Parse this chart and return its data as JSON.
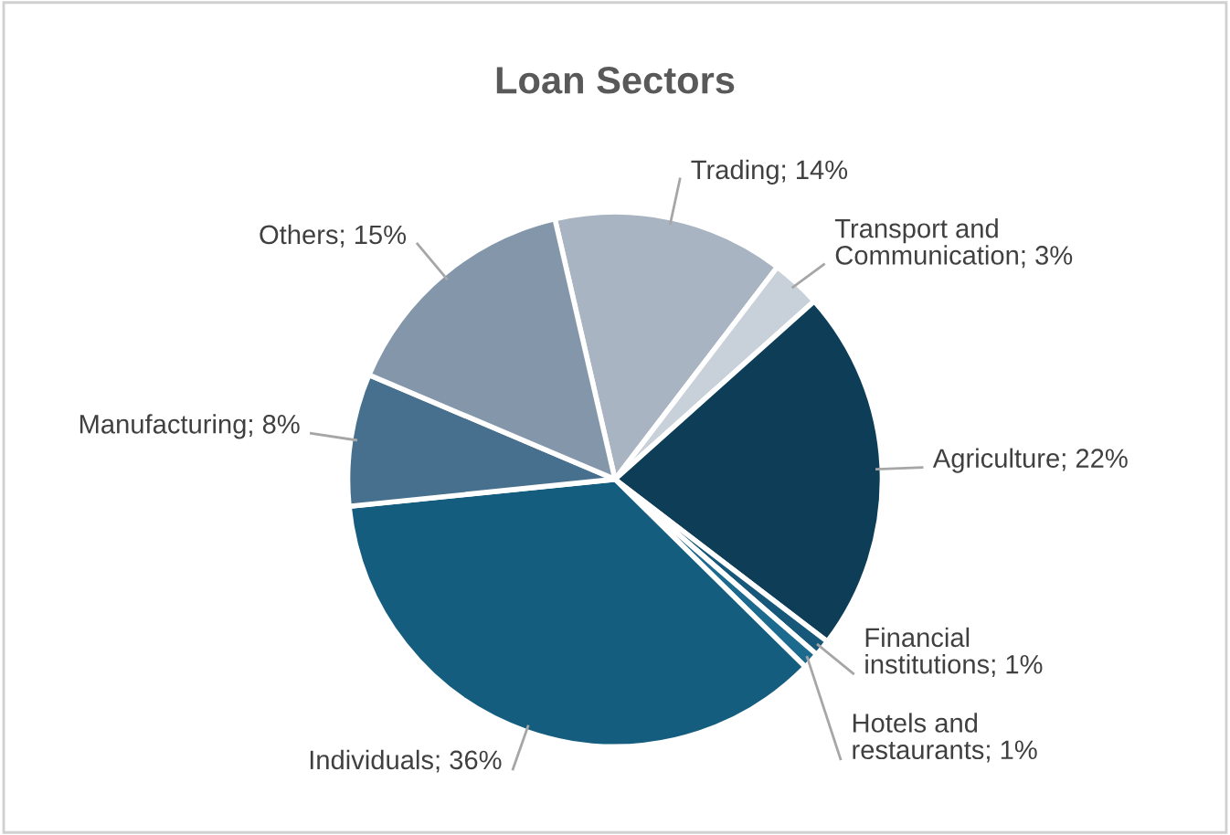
{
  "chart_data": {
    "type": "pie",
    "title": "Loan Sectors",
    "categories": [
      "Trading",
      "Transport and Communication",
      "Agriculture",
      "Financial institutions",
      "Hotels and restaurants",
      "Individuals",
      "Manufacturing",
      "Others"
    ],
    "values": [
      14,
      3,
      22,
      1,
      1,
      36,
      8,
      15
    ],
    "colors": [
      "#a9b4c2",
      "#c8d0da",
      "#0e3e57",
      "#17587a",
      "#1d6a8f",
      "#155d7e",
      "#47708e",
      "#8497aa"
    ],
    "value_labels": [
      "; 14%",
      "; 3%",
      "; 22%",
      "; 1%",
      "; 1%",
      "; 36%",
      "; 8%",
      "; 15%"
    ]
  }
}
